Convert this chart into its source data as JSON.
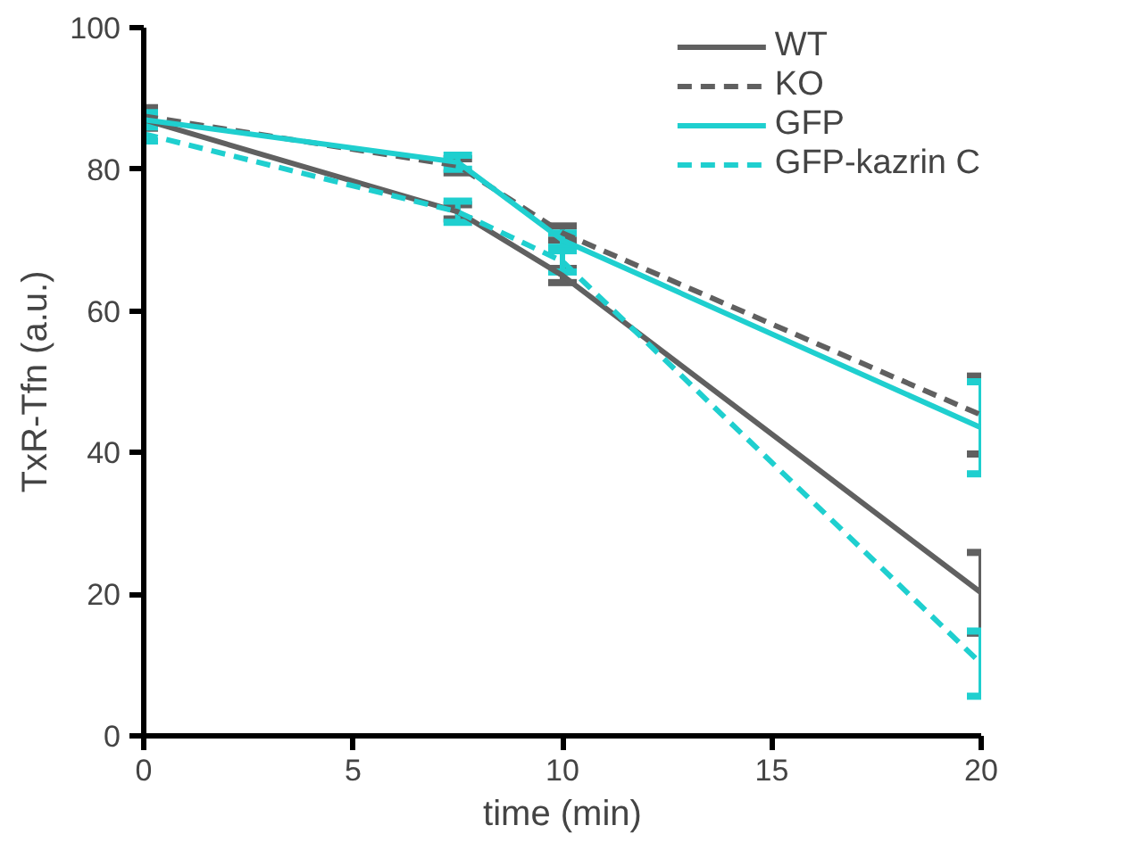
{
  "chart_data": {
    "type": "line",
    "xlabel": "time (min)",
    "ylabel": "TxR-Tfn (a.u.)",
    "x": [
      0,
      7.5,
      10,
      20
    ],
    "xlim": [
      0,
      20
    ],
    "xticks": [
      0,
      5,
      10,
      15,
      20
    ],
    "ylim": [
      0,
      100
    ],
    "yticks": [
      0,
      20,
      40,
      60,
      80,
      100
    ],
    "grid": false,
    "legend": "top right",
    "marker": "none",
    "series": [
      {
        "name": "WT",
        "color": "#606060",
        "line_style": "solid",
        "values": [
          87,
          74,
          65,
          20.2
        ],
        "errors": [
          1.2,
          1,
          1,
          5.7
        ]
      },
      {
        "name": "KO",
        "color": "#606060",
        "line_style": "dashed",
        "values": [
          87.5,
          80.5,
          71,
          45.3
        ],
        "errors": [
          1.2,
          1,
          1,
          5.5
        ]
      },
      {
        "name": "GFP",
        "color": "#1fcfcf",
        "line_style": "solid",
        "values": [
          87,
          81,
          70,
          43.5
        ],
        "errors": [
          1,
          1,
          1,
          6.5
        ]
      },
      {
        "name": "GFP-kazrin C",
        "color": "#1fcfcf",
        "line_style": "dashed",
        "values": [
          85,
          74,
          67,
          10.2
        ],
        "errors": [
          1,
          1.5,
          1.5,
          4.6
        ]
      }
    ]
  }
}
